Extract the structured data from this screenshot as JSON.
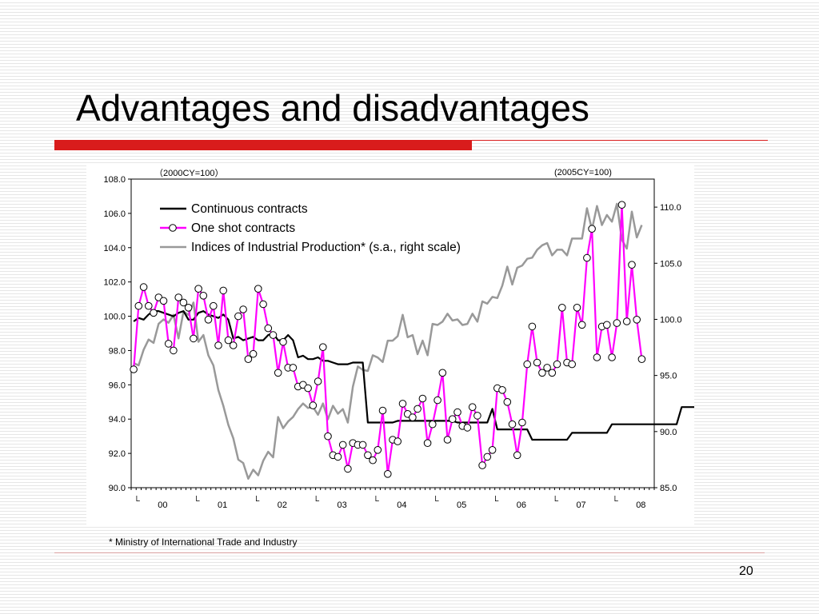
{
  "slide": {
    "title": "Advantages and disadvantages",
    "footnote": "* Ministry of International Trade and Industry",
    "page_number": "20"
  },
  "colors": {
    "continuous": "#000000",
    "one_shot": "#ff00ff",
    "iip": "#999999",
    "title_rule": "#d91c1c"
  },
  "chart_data": {
    "type": "line",
    "left_axis_note": "（2000CY=100）",
    "right_axis_note": "(2005CY=100)",
    "ylim_left": [
      90,
      108
    ],
    "yticks_left": [
      "108.0",
      "106.0",
      "104.0",
      "102.0",
      "100.0",
      "98.0",
      "96.0",
      "94.0",
      "92.0",
      "90.0"
    ],
    "ylim_right": [
      85,
      112.5
    ],
    "yticks_right": [
      "110.0",
      "105.0",
      "100.0",
      "95.0",
      "90.0",
      "85.0"
    ],
    "x_start": "2000-01",
    "x_end": "2008-09",
    "x_year_labels": [
      "00",
      "01",
      "02",
      "03",
      "04",
      "05",
      "06",
      "07",
      "08"
    ],
    "x_marker_label": "└",
    "legend_position": "top-left",
    "series": [
      {
        "name": "Continuous contracts",
        "axis": "left",
        "color": "#000000",
        "markers": false,
        "values": [
          99.7,
          99.9,
          99.8,
          100.1,
          100.3,
          100.3,
          100.2,
          100.1,
          100.0,
          100.2,
          100.3,
          99.8,
          99.8,
          100.2,
          100.3,
          100.1,
          100.0,
          99.9,
          100.1,
          99.8,
          98.7,
          98.8,
          98.6,
          98.7,
          98.8,
          98.6,
          98.6,
          98.9,
          99.0,
          98.6,
          98.6,
          98.9,
          98.6,
          97.6,
          97.7,
          97.5,
          97.5,
          97.6,
          97.4,
          97.4,
          97.3,
          97.2,
          97.2,
          97.2,
          97.3,
          97.3,
          97.3,
          93.8,
          93.8,
          93.8,
          93.8,
          93.8,
          93.8,
          93.9,
          93.9,
          93.9,
          93.9,
          93.9,
          93.9,
          93.9,
          93.9,
          93.9,
          93.9,
          93.9,
          93.9,
          93.8,
          93.8,
          93.8,
          93.8,
          93.8,
          93.8,
          93.8,
          94.6,
          93.4,
          93.4,
          93.4,
          93.4,
          93.4,
          93.4,
          93.4,
          92.8,
          92.8,
          92.8,
          92.8,
          92.8,
          92.8,
          92.8,
          92.8,
          93.2,
          93.2,
          93.2,
          93.2,
          93.2,
          93.2,
          93.2,
          93.2,
          93.7,
          93.7,
          93.7,
          93.7,
          93.7,
          93.7,
          93.7,
          93.7,
          93.7,
          93.7,
          93.7,
          93.7,
          93.7,
          93.7,
          94.7,
          94.7,
          94.7,
          94.7,
          94.7,
          94.7,
          94.7,
          94.7,
          94.7,
          94.7,
          94.7,
          94.7,
          94.7,
          94.7,
          94.9,
          94.9,
          94.9,
          94.9
        ]
      },
      {
        "name": "One shot contracts",
        "axis": "left",
        "color": "#ff00ff",
        "markers": true,
        "values": [
          96.9,
          100.6,
          101.7,
          100.6,
          100.2,
          101.1,
          100.9,
          98.4,
          98.0,
          101.1,
          100.8,
          100.5,
          98.7,
          101.6,
          101.2,
          99.8,
          100.6,
          98.3,
          101.5,
          98.6,
          98.3,
          100.0,
          100.4,
          97.5,
          97.8,
          101.6,
          100.7,
          99.3,
          98.9,
          96.7,
          98.5,
          97.0,
          97.0,
          95.9,
          96.0,
          95.8,
          94.8,
          96.2,
          98.2,
          93.0,
          91.9,
          91.8,
          92.5,
          91.1,
          92.6,
          92.5,
          92.5,
          91.9,
          91.6,
          92.2,
          94.5,
          90.8,
          92.8,
          92.7,
          94.9,
          94.3,
          94.1,
          94.6,
          95.2,
          92.6,
          93.7,
          95.1,
          96.7,
          92.8,
          94.0,
          94.4,
          93.6,
          93.5,
          94.7,
          94.2,
          91.3,
          91.8,
          92.2,
          95.8,
          95.7,
          95.0,
          93.7,
          91.9,
          93.8,
          97.2,
          99.4,
          97.3,
          96.7,
          97.0,
          96.7,
          97.2,
          100.5,
          97.3,
          97.2,
          100.5,
          99.5,
          103.4,
          105.1,
          97.6,
          99.4,
          99.5,
          97.6,
          99.6,
          106.5,
          99.7,
          103.0,
          99.8,
          97.5
        ]
      },
      {
        "name": "Indices of Industrial Production* (s.a., right scale)",
        "axis": "right",
        "color": "#999999",
        "markers": false,
        "values": [
          96.1,
          95.9,
          97.3,
          98.2,
          97.9,
          99.6,
          100.0,
          99.7,
          100.4,
          98.3,
          100.7,
          100.4,
          101.5,
          98.0,
          98.6,
          96.8,
          95.9,
          93.7,
          92.3,
          90.6,
          89.4,
          87.5,
          87.2,
          85.8,
          86.6,
          86.1,
          87.4,
          88.2,
          87.7,
          91.3,
          90.3,
          90.9,
          91.3,
          92.0,
          92.5,
          92.1,
          92.2,
          91.5,
          92.5,
          91.1,
          92.3,
          91.6,
          92.0,
          90.8,
          94.0,
          95.8,
          95.5,
          95.4,
          96.8,
          96.6,
          96.2,
          98.1,
          98.1,
          98.5,
          100.4,
          98.4,
          98.6,
          96.9,
          98.1,
          96.8,
          99.6,
          99.5,
          99.8,
          100.5,
          99.9,
          100.0,
          99.5,
          99.6,
          100.5,
          99.8,
          101.6,
          101.4,
          102.0,
          101.9,
          103.0,
          104.7,
          103.1,
          104.6,
          104.8,
          105.4,
          105.5,
          106.2,
          106.6,
          106.8,
          105.7,
          106.2,
          106.2,
          105.7,
          107.2,
          107.2,
          107.2,
          109.9,
          108.0,
          110.1,
          108.4,
          109.3,
          108.7,
          110.3,
          107.1,
          106.3,
          109.6,
          107.3,
          108.4
        ]
      }
    ]
  }
}
